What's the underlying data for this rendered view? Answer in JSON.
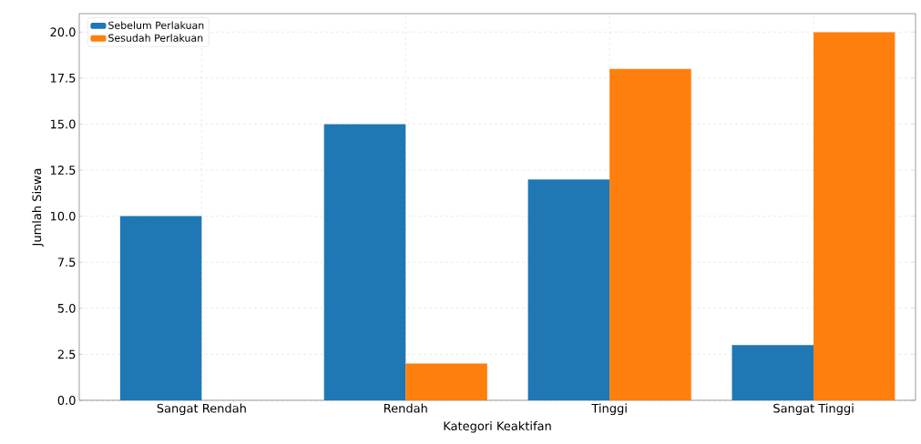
{
  "chart_data": {
    "type": "bar",
    "xlabel": "Kategori Keaktifan",
    "ylabel": "Jumlah Siswa",
    "categories": [
      "Sangat Rendah",
      "Rendah",
      "Tinggi",
      "Sangat Tinggi"
    ],
    "series": [
      {
        "name": "Sebelum Perlakuan",
        "color": "#1f77b4",
        "values": [
          10,
          15,
          12,
          3
        ]
      },
      {
        "name": "Sesudah Perlakuan",
        "color": "#ff7f0e",
        "values": [
          0,
          2,
          18,
          20
        ]
      }
    ],
    "ylim": [
      0,
      21
    ],
    "yticks": [
      {
        "value": 0,
        "label": "0.0"
      },
      {
        "value": 2.5,
        "label": "2.5"
      },
      {
        "value": 5,
        "label": "5.0"
      },
      {
        "value": 7.5,
        "label": "7.5"
      },
      {
        "value": 10,
        "label": "10.0"
      },
      {
        "value": 12.5,
        "label": "12.5"
      },
      {
        "value": 15,
        "label": "15.0"
      },
      {
        "value": 17.5,
        "label": "17.5"
      },
      {
        "value": 20,
        "label": "20.0"
      }
    ],
    "grid": true,
    "legend": "top left"
  }
}
